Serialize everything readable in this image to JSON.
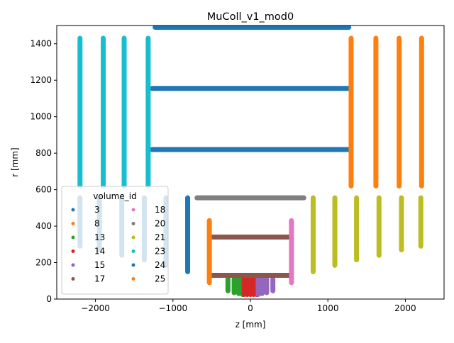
{
  "chart_data": {
    "type": "scatter",
    "title": "MuColl_v1_mod0",
    "xlabel": "z [mm]",
    "ylabel": "r [mm]",
    "xlim": [
      -2500,
      2500
    ],
    "ylim": [
      0,
      1500
    ],
    "x_ticks": [
      -2000,
      -1000,
      0,
      1000,
      2000
    ],
    "x_tick_labels": [
      "−2000",
      "−1000",
      "0",
      "1000",
      "2000"
    ],
    "y_ticks": [
      0,
      200,
      400,
      600,
      800,
      1000,
      1200,
      1400
    ],
    "y_tick_labels": [
      "0",
      "200",
      "400",
      "600",
      "800",
      "1000",
      "1200",
      "1400"
    ],
    "grid": false,
    "legend": {
      "title": "volume_id",
      "placement": "lower-left",
      "ncol": 2,
      "entries": [
        "3",
        "8",
        "13",
        "14",
        "15",
        "17",
        "18",
        "20",
        "21",
        "23",
        "24",
        "25"
      ]
    },
    "series": [
      {
        "name": "3",
        "color": "#1f77b4",
        "segments": [
          {
            "z": [
              -1230,
              1270
            ],
            "r": [
              1490,
              1490
            ]
          },
          {
            "z": [
              -1270,
              1270
            ],
            "r": [
              1155,
              1155
            ]
          },
          {
            "z": [
              -1270,
              1270
            ],
            "r": [
              820,
              820
            ]
          }
        ]
      },
      {
        "name": "8",
        "color": "#ff7f0e",
        "segments": [
          {
            "z": [
              1300,
              1300
            ],
            "r": [
              620,
              1430
            ]
          },
          {
            "z": [
              1620,
              1620
            ],
            "r": [
              620,
              1430
            ]
          },
          {
            "z": [
              1920,
              1920
            ],
            "r": [
              620,
              1430
            ]
          },
          {
            "z": [
              2210,
              2210
            ],
            "r": [
              620,
              1430
            ]
          }
        ]
      },
      {
        "name": "13",
        "color": "#2ca02c",
        "segments": [
          {
            "z": [
              -290,
              -290
            ],
            "r": [
              45,
              110
            ]
          },
          {
            "z": [
              -210,
              -210
            ],
            "r": [
              35,
              110
            ]
          },
          {
            "z": [
              -150,
              -150
            ],
            "r": [
              30,
              110
            ]
          },
          {
            "z": [
              -100,
              -100
            ],
            "r": [
              25,
              110
            ]
          }
        ]
      },
      {
        "name": "14",
        "color": "#d62728",
        "segments": [
          {
            "z": [
              -80,
              -80
            ],
            "r": [
              25,
              110
            ]
          },
          {
            "z": [
              -40,
              -40
            ],
            "r": [
              25,
              110
            ]
          },
          {
            "z": [
              0,
              0
            ],
            "r": [
              25,
              110
            ]
          },
          {
            "z": [
              40,
              40
            ],
            "r": [
              25,
              110
            ]
          },
          {
            "z": [
              80,
              80
            ],
            "r": [
              25,
              110
            ]
          }
        ]
      },
      {
        "name": "15",
        "color": "#9467bd",
        "segments": [
          {
            "z": [
              100,
              100
            ],
            "r": [
              25,
              110
            ]
          },
          {
            "z": [
              150,
              150
            ],
            "r": [
              30,
              110
            ]
          },
          {
            "z": [
              210,
              210
            ],
            "r": [
              35,
              110
            ]
          },
          {
            "z": [
              290,
              290
            ],
            "r": [
              45,
              110
            ]
          }
        ]
      },
      {
        "name": "17",
        "color": "#8c564b",
        "segments": [
          {
            "z": [
              -520,
              520
            ],
            "r": [
              130,
              130
            ]
          },
          {
            "z": [
              -520,
              520
            ],
            "r": [
              340,
              340
            ]
          }
        ]
      },
      {
        "name": "18",
        "color": "#e377c2",
        "segments": [
          {
            "z": [
              530,
              530
            ],
            "r": [
              90,
              430
            ]
          }
        ]
      },
      {
        "name": "20",
        "color": "#7f7f7f",
        "segments": [
          {
            "z": [
              -690,
              690
            ],
            "r": [
              555,
              555
            ]
          }
        ]
      },
      {
        "name": "21",
        "color": "#bcbd22",
        "segments": [
          {
            "z": [
              810,
              810
            ],
            "r": [
              150,
              555
            ]
          },
          {
            "z": [
              1090,
              1090
            ],
            "r": [
              185,
              555
            ]
          },
          {
            "z": [
              1370,
              1370
            ],
            "r": [
              215,
              555
            ]
          },
          {
            "z": [
              1660,
              1660
            ],
            "r": [
              240,
              555
            ]
          },
          {
            "z": [
              1950,
              1950
            ],
            "r": [
              270,
              555
            ]
          },
          {
            "z": [
              2200,
              2200
            ],
            "r": [
              290,
              555
            ]
          }
        ]
      },
      {
        "name": "23",
        "color": "#17becf",
        "segments": [
          {
            "z": [
              -2200,
              -2200
            ],
            "r": [
              620,
              1430
            ]
          },
          {
            "z": [
              -1900,
              -1900
            ],
            "r": [
              620,
              1430
            ]
          },
          {
            "z": [
              -1630,
              -1630
            ],
            "r": [
              620,
              1430
            ]
          },
          {
            "z": [
              -1320,
              -1320
            ],
            "r": [
              620,
              1430
            ]
          }
        ]
      },
      {
        "name": "24",
        "color": "#1f77b4",
        "segments": [
          {
            "z": [
              -810,
              -810
            ],
            "r": [
              150,
              555
            ]
          },
          {
            "z": [
              -1090,
              -1090
            ],
            "r": [
              185,
              555
            ]
          },
          {
            "z": [
              -1370,
              -1370
            ],
            "r": [
              215,
              555
            ]
          },
          {
            "z": [
              -1660,
              -1660
            ],
            "r": [
              240,
              555
            ]
          },
          {
            "z": [
              -1950,
              -1950
            ],
            "r": [
              270,
              555
            ]
          },
          {
            "z": [
              -2200,
              -2200
            ],
            "r": [
              290,
              555
            ]
          }
        ]
      },
      {
        "name": "25",
        "color": "#ff7f0e",
        "segments": [
          {
            "z": [
              -530,
              -530
            ],
            "r": [
              90,
              430
            ]
          }
        ]
      }
    ]
  }
}
